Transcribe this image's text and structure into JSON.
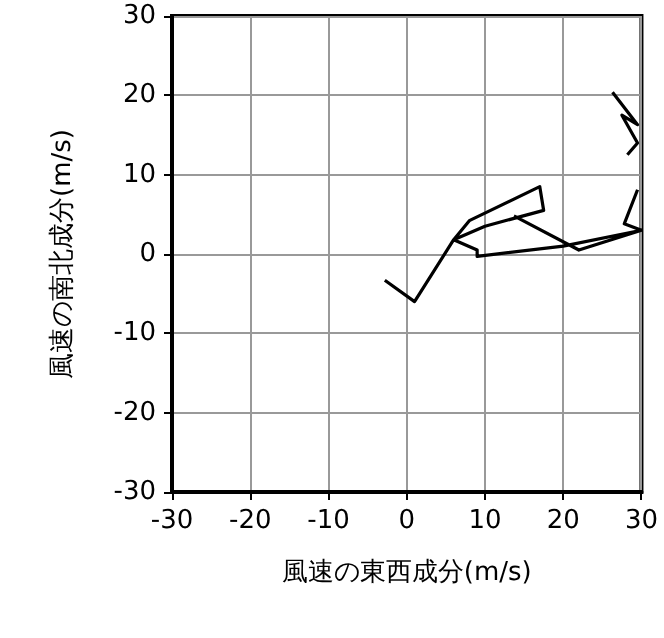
{
  "chart_data": {
    "type": "line",
    "xlabel": "風速の東西成分(m/s)",
    "ylabel": "風速の南北成分(m/s)",
    "xlim": [
      -30,
      30
    ],
    "ylim": [
      -30,
      30
    ],
    "xticks": [
      -30,
      -20,
      -10,
      0,
      10,
      20,
      30
    ],
    "yticks": [
      -30,
      -20,
      -10,
      0,
      10,
      20,
      30
    ],
    "grid": true,
    "marker": "none",
    "line_style": "solid",
    "series": [
      {
        "color": "#000000",
        "x": [
          -2.8,
          1,
          6,
          8,
          17,
          17.5,
          10,
          6,
          9,
          9,
          20,
          30,
          22,
          13.7
        ],
        "values": [
          -3.3,
          -6,
          1.8,
          4.2,
          8.5,
          5.5,
          3.5,
          1.8,
          0.5,
          -0.3,
          1,
          3,
          0.5,
          4.8
        ]
      },
      {
        "color": "#000000",
        "x": [
          26.3,
          29.5,
          27.5,
          29.5,
          28.2
        ],
        "values": [
          20.4,
          16.3,
          17.5,
          14,
          12.5
        ]
      },
      {
        "color": "#000000",
        "x": [
          29.5,
          27.8,
          30
        ],
        "values": [
          8.1,
          3.8,
          3
        ]
      }
    ]
  }
}
